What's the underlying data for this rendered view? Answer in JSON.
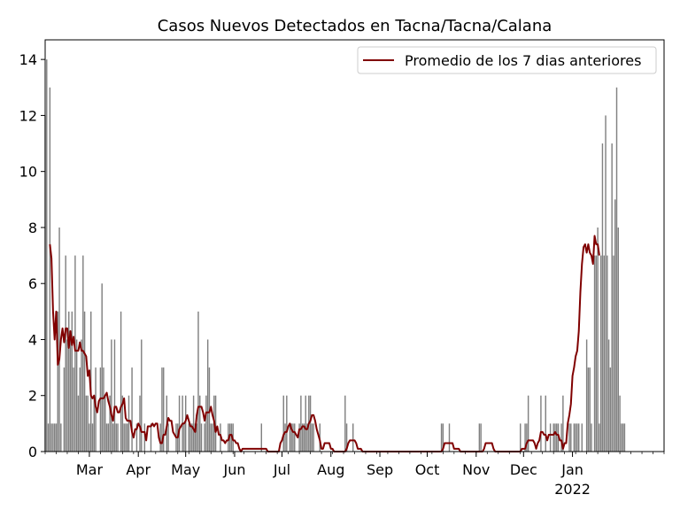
{
  "chart_data": {
    "type": "bar",
    "title": "Casos Nuevos Detectados en Tacna/Tacna/Calana",
    "xlabel": "",
    "ylabel": "",
    "x_range": [
      "2021-02-01",
      "2022-02-28"
    ],
    "ylim": [
      0,
      14.7
    ],
    "y_ticks": [
      0,
      2,
      4,
      6,
      8,
      10,
      12,
      14
    ],
    "x_ticks": [
      {
        "date": "2021-03-01",
        "label": "Mar"
      },
      {
        "date": "2021-04-01",
        "label": "Apr"
      },
      {
        "date": "2021-05-01",
        "label": "May"
      },
      {
        "date": "2021-06-01",
        "label": "Jun"
      },
      {
        "date": "2021-07-01",
        "label": "Jul"
      },
      {
        "date": "2021-08-01",
        "label": "Aug"
      },
      {
        "date": "2021-09-01",
        "label": "Sep"
      },
      {
        "date": "2021-10-01",
        "label": "Oct"
      },
      {
        "date": "2021-11-01",
        "label": "Nov"
      },
      {
        "date": "2021-12-01",
        "label": "Dec"
      },
      {
        "date": "2022-01-01",
        "label": "Jan"
      }
    ],
    "year_label": "2022",
    "grid": false,
    "legend_position": "top-right",
    "colors": {
      "bars": "#808080",
      "line": "#800000"
    },
    "daily_series": {
      "name": "",
      "start_date": "2021-02-01",
      "values": [
        12,
        14,
        1,
        13,
        1,
        1,
        1,
        1,
        5,
        8,
        1,
        0,
        3,
        7,
        4,
        5,
        4,
        5,
        3,
        7,
        4,
        2,
        3,
        4,
        7,
        5,
        2,
        2,
        1,
        5,
        1,
        2,
        3,
        0,
        0,
        3,
        6,
        3,
        2,
        1,
        1,
        2,
        4,
        1,
        4,
        1,
        1,
        0,
        5,
        2,
        1,
        1,
        1,
        2,
        0,
        3,
        0,
        0,
        1,
        0,
        2,
        4,
        0,
        1,
        0,
        0,
        0,
        1,
        0,
        0,
        0,
        0,
        0,
        1,
        3,
        3,
        0,
        2,
        1,
        0,
        0,
        0,
        0,
        1,
        1,
        2,
        0,
        2,
        1,
        2,
        0,
        1,
        1,
        1,
        2,
        1,
        1,
        5,
        2,
        1,
        0,
        1,
        2,
        4,
        3,
        1,
        1,
        2,
        2,
        0,
        0,
        1,
        0,
        0,
        0,
        0,
        1,
        1,
        1,
        1,
        0,
        0,
        0,
        0,
        0,
        0,
        0,
        0,
        0,
        0,
        0,
        0,
        0,
        0,
        0,
        0,
        0,
        1,
        0,
        0,
        0,
        0,
        0,
        0,
        0,
        0,
        0,
        0,
        0,
        0,
        0,
        2,
        1,
        2,
        0,
        1,
        1,
        1,
        1,
        0,
        0,
        1,
        2,
        1,
        1,
        2,
        1,
        2,
        2,
        1,
        1,
        0,
        0,
        0,
        1,
        0,
        0,
        0,
        0,
        0,
        0,
        0,
        0,
        0,
        0,
        0,
        0,
        0,
        0,
        0,
        2,
        1,
        0,
        0,
        0,
        1,
        0,
        0,
        0,
        0,
        0,
        0,
        0,
        0,
        0,
        0,
        0,
        0,
        0,
        0,
        0,
        0,
        0,
        0,
        0,
        0,
        0,
        0,
        0,
        0,
        0,
        0,
        0,
        0,
        0,
        0,
        0,
        0,
        0,
        0,
        0,
        0,
        0,
        0,
        0,
        0,
        0,
        0,
        0,
        0,
        0,
        0,
        0,
        0,
        0,
        0,
        0,
        0,
        0,
        0,
        0,
        1,
        1,
        0,
        0,
        0,
        1,
        0,
        0,
        0,
        0,
        0,
        0,
        0,
        0,
        0,
        0,
        0,
        0,
        0,
        0,
        0,
        0,
        0,
        0,
        1,
        1,
        0,
        0,
        0,
        0,
        0,
        0,
        0,
        0,
        0,
        0,
        0,
        0,
        0,
        0,
        0,
        0,
        0,
        0,
        0,
        0,
        0,
        0,
        0,
        0,
        1,
        0,
        0,
        1,
        1,
        2,
        0,
        0,
        0,
        0,
        0,
        0,
        0,
        2,
        0,
        0,
        2,
        0,
        0,
        1,
        0,
        1,
        1,
        1,
        1,
        0,
        1,
        2,
        0,
        0,
        0,
        1,
        1,
        0,
        1,
        1,
        1,
        1,
        0,
        1,
        0,
        0,
        4,
        3,
        3,
        1,
        0,
        7,
        7,
        8,
        1,
        7,
        11,
        7,
        12,
        7,
        4,
        3,
        11,
        7,
        9,
        13,
        8,
        2,
        1,
        1,
        1
      ]
    },
    "moving_average": {
      "name": "Promedio de los 7 dias anteriores",
      "start_date": "2021-02-04",
      "values": [
        7.4,
        6.9,
        5,
        4,
        5,
        3.1,
        3.3,
        4,
        4.4,
        3.9,
        4.4,
        4.4,
        3.7,
        4.3,
        3.8,
        4.1,
        3.6,
        3.6,
        3.6,
        3.9,
        3.6,
        3.6,
        3.5,
        3.4,
        2.7,
        2.9,
        2,
        1.9,
        2,
        1.6,
        1.4,
        1.8,
        1.9,
        1.9,
        1.9,
        2,
        2.1,
        1.8,
        1.6,
        1.3,
        1.1,
        1.6,
        1.6,
        1.4,
        1.4,
        1.6,
        1.7,
        1.9,
        1.2,
        1.1,
        1.1,
        1.1,
        0.7,
        0.5,
        0.8,
        0.8,
        1,
        0.9,
        0.7,
        0.7,
        0.7,
        0.4,
        0.9,
        0.9,
        0.9,
        1,
        0.9,
        1,
        1,
        0.5,
        0.3,
        0.3,
        0.6,
        0.6,
        0.9,
        1.2,
        1.1,
        1.1,
        0.7,
        0.6,
        0.5,
        0.5,
        0.8,
        0.9,
        1,
        1,
        1.1,
        1.3,
        1.1,
        0.9,
        0.9,
        0.8,
        0.7,
        1.3,
        1.6,
        1.6,
        1.6,
        1.4,
        1.1,
        1.4,
        1.4,
        1.4,
        1.6,
        1.3,
        1.1,
        0.7,
        0.9,
        0.6,
        0.6,
        0.4,
        0.4,
        0.3,
        0.4,
        0.4,
        0.6,
        0.6,
        0.4,
        0.4,
        0.3,
        0.3,
        0.1,
        0,
        0.1,
        0.1,
        0.1,
        0.1,
        0.1,
        0.1,
        0.1,
        0.1,
        0.1,
        0.1,
        0.1,
        0.1,
        0.1,
        0.1,
        0.1,
        0.1,
        0,
        0,
        0,
        0,
        0,
        0,
        0,
        0,
        0.3,
        0.4,
        0.6,
        0.7,
        0.7,
        0.9,
        1,
        0.8,
        0.7,
        0.7,
        0.6,
        0.5,
        0.8,
        0.8,
        0.9,
        0.9,
        0.8,
        0.8,
        1,
        1.1,
        1.3,
        1.3,
        1.1,
        0.8,
        0.6,
        0.4,
        0.1,
        0.1,
        0.3,
        0.3,
        0.3,
        0.3,
        0.1,
        0.1,
        0,
        0,
        0,
        0,
        0,
        0,
        0,
        0,
        0.1,
        0.3,
        0.4,
        0.4,
        0.4,
        0.4,
        0.3,
        0.1,
        0.1,
        0.1,
        0,
        0,
        0,
        0,
        0,
        0,
        0,
        0,
        0,
        0,
        0,
        0,
        0,
        0,
        0,
        0,
        0,
        0,
        0,
        0,
        0,
        0,
        0,
        0,
        0,
        0,
        0,
        0,
        0,
        0,
        0,
        0,
        0,
        0,
        0,
        0,
        0,
        0,
        0,
        0,
        0,
        0,
        0,
        0,
        0,
        0,
        0,
        0,
        0,
        0,
        0,
        0.1,
        0.3,
        0.3,
        0.3,
        0.3,
        0.3,
        0.3,
        0.1,
        0.1,
        0.1,
        0.1,
        0,
        0,
        0,
        0,
        0,
        0,
        0,
        0,
        0,
        0,
        0,
        0,
        0,
        0,
        0,
        0.1,
        0.3,
        0.3,
        0.3,
        0.3,
        0.3,
        0.1,
        0,
        0,
        0,
        0,
        0,
        0,
        0,
        0,
        0,
        0,
        0,
        0,
        0,
        0,
        0,
        0,
        0,
        0.1,
        0.1,
        0.1,
        0.3,
        0.4,
        0.4,
        0.4,
        0.4,
        0.3,
        0.1,
        0.3,
        0.4,
        0.7,
        0.7,
        0.6,
        0.6,
        0.4,
        0.6,
        0.6,
        0.6,
        0.6,
        0.7,
        0.6,
        0.6,
        0.4,
        0.4,
        0.1,
        0.3,
        0.3,
        1,
        1.3,
        1.7,
        2.7,
        3,
        3.4,
        3.6,
        4.3,
        5.7,
        6.7,
        7.3,
        7.4,
        7.1,
        7.4,
        7.1,
        7,
        6.7,
        7.7,
        7.4,
        7.4,
        7
      ]
    }
  }
}
